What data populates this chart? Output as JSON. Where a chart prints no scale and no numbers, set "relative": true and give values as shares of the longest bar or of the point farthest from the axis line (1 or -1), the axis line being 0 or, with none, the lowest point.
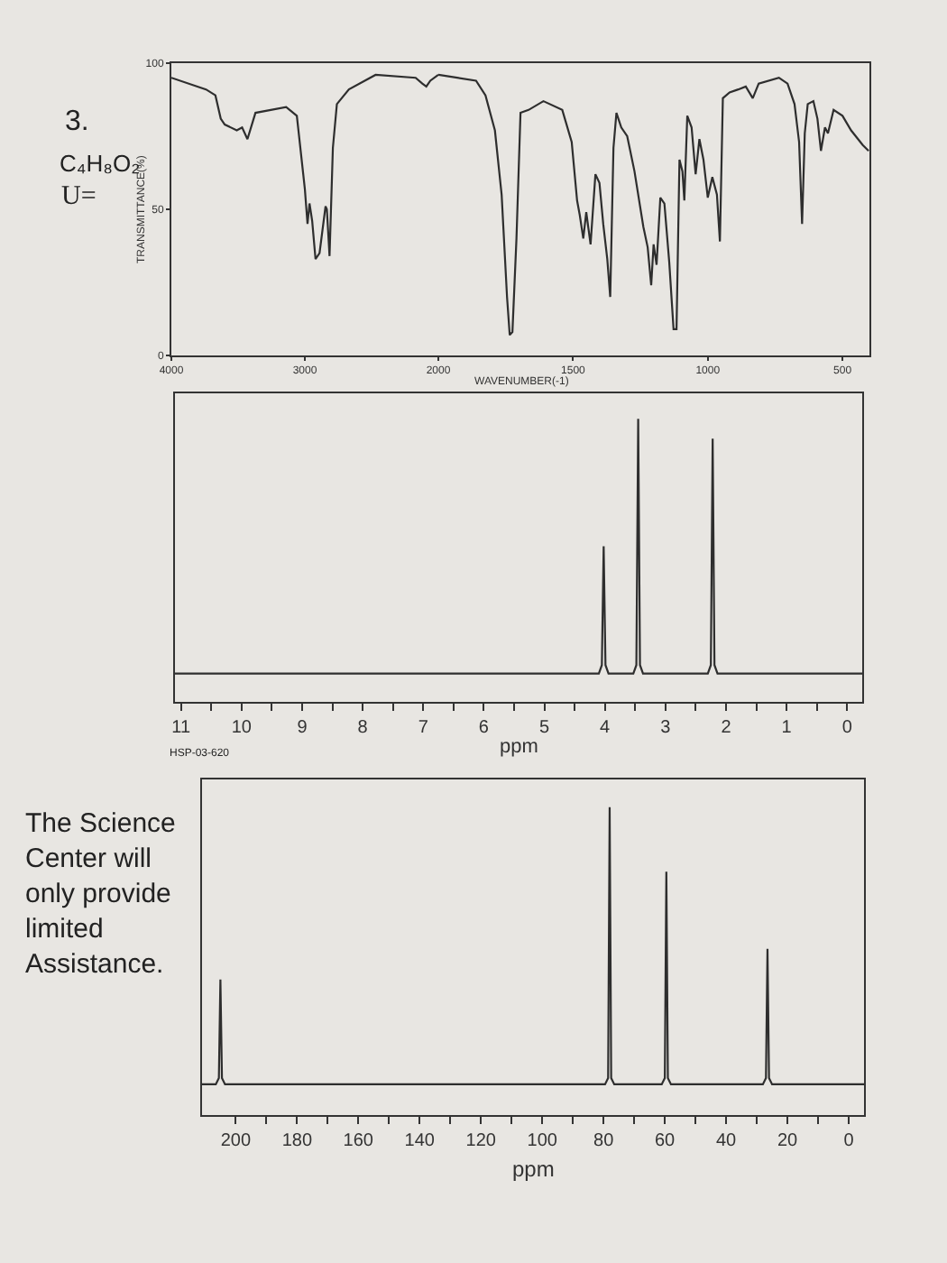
{
  "chart_data": [
    {
      "type": "line",
      "ylabel": "TRANSMITTANCE(%)",
      "annotations": [
        "3.",
        "C₄H₈O₂",
        "U="
      ],
      "color": "#2e2e2e",
      "xlim": [
        4000,
        2000
      ],
      "xticks": [
        4000,
        3000,
        2000
      ],
      "ylim": [
        0,
        100
      ],
      "yticks": [
        0,
        50,
        100
      ],
      "x": [
        4000,
        3740,
        3670,
        3630,
        3600,
        3510,
        3470,
        3430,
        3370,
        3140,
        3060,
        3000,
        2980,
        2965,
        2945,
        2920,
        2890,
        2845,
        2835,
        2815,
        2790,
        2760,
        2670,
        2470,
        2170,
        2120,
        2090,
        2060,
        2000
      ],
      "values": [
        95,
        91,
        89,
        81,
        79,
        77,
        78,
        74,
        83,
        85,
        82,
        57,
        45,
        52,
        46,
        33,
        35,
        51,
        50,
        34,
        71,
        86,
        91,
        96,
        95,
        93,
        92,
        94,
        96
      ]
    },
    {
      "type": "line",
      "xlabel": "WAVENUMBER(-1)",
      "color": "#2e2e2e",
      "xlim": [
        2000,
        400
      ],
      "xticks": [
        1500,
        1000,
        500
      ],
      "ylim": [
        0,
        100
      ],
      "tick_labels": "x",
      "x": [
        2000,
        1930,
        1860,
        1825,
        1790,
        1765,
        1745,
        1735,
        1725,
        1710,
        1695,
        1665,
        1610,
        1540,
        1505,
        1485,
        1475,
        1462,
        1451,
        1435,
        1417,
        1402,
        1388,
        1373,
        1362,
        1350,
        1339,
        1321,
        1299,
        1272,
        1239,
        1223,
        1210,
        1201,
        1190,
        1176,
        1161,
        1143,
        1127,
        1116,
        1105,
        1094,
        1087,
        1076,
        1060,
        1045,
        1031,
        1016,
        1000,
        983,
        966,
        955,
        944,
        919,
        887,
        859,
        833,
        811,
        736,
        704,
        678,
        661,
        650,
        640,
        629,
        608,
        593,
        580,
        565,
        554,
        533,
        500,
        468,
        425,
        403
      ],
      "values": [
        96,
        95,
        94,
        89,
        77,
        55,
        20,
        7,
        8,
        40,
        83,
        84,
        87,
        84,
        73,
        53,
        48,
        40,
        49,
        38,
        62,
        59,
        45,
        33,
        20,
        71,
        83,
        78,
        75,
        63,
        44,
        37,
        24,
        38,
        31,
        54,
        52,
        32,
        9,
        9,
        67,
        63,
        53,
        82,
        78,
        62,
        74,
        67,
        54,
        61,
        55,
        39,
        88,
        90,
        91,
        92,
        88,
        93,
        95,
        93,
        86,
        73,
        45,
        76,
        86,
        87,
        81,
        70,
        78,
        76,
        84,
        82,
        77,
        72,
        70
      ]
    },
    {
      "type": "line",
      "xlabel": "ppm",
      "annotations": [
        "HSP-03-620"
      ],
      "relative": true,
      "color": "#2e2e2e",
      "xlim": [
        11.1,
        -0.25
      ],
      "xticks": [
        11,
        {
          "value": 10.5,
          "label": null
        },
        10,
        {
          "value": 9.5,
          "label": null
        },
        9,
        {
          "value": 8.5,
          "label": null
        },
        8,
        {
          "value": 7.5,
          "label": null
        },
        7,
        {
          "value": 6.5,
          "label": null
        },
        6,
        {
          "value": 5.5,
          "label": null
        },
        5,
        {
          "value": 4.5,
          "label": null
        },
        4,
        {
          "value": 3.5,
          "label": null
        },
        3,
        {
          "value": 2.5,
          "label": null
        },
        2,
        {
          "value": 1.5,
          "label": null
        },
        1,
        {
          "value": 0.5,
          "label": null
        },
        0
      ],
      "x": [
        11.1,
        4.1,
        4.05,
        4.02,
        3.99,
        3.94,
        3.53,
        3.48,
        3.45,
        3.42,
        3.37,
        2.3,
        2.25,
        2.22,
        2.19,
        2.14,
        -0.25
      ],
      "values": [
        0.1,
        0.1,
        0.13,
        0.55,
        0.13,
        0.1,
        0.1,
        0.13,
        1,
        0.13,
        0.1,
        0.1,
        0.13,
        0.93,
        0.13,
        0.1,
        0.1
      ]
    },
    {
      "type": "line",
      "xlabel": "ppm",
      "annotations": [
        "The Science\nCenter will\nonly provide\nlimited\nAssistance."
      ],
      "relative": true,
      "color": "#2e2e2e",
      "xlim": [
        211,
        -5
      ],
      "xticks": [
        200,
        {
          "value": 190,
          "label": null
        },
        180,
        {
          "value": 170,
          "label": null
        },
        160,
        {
          "value": 150,
          "label": null
        },
        140,
        {
          "value": 130,
          "label": null
        },
        120,
        {
          "value": 110,
          "label": null
        },
        100,
        {
          "value": 90,
          "label": null
        },
        80,
        {
          "value": 70,
          "label": null
        },
        60,
        {
          "value": 50,
          "label": null
        },
        40,
        {
          "value": 30,
          "label": null
        },
        20,
        {
          "value": 10,
          "label": null
        },
        0
      ],
      "x": [
        211,
        206.5,
        205.5,
        205,
        204.5,
        203.5,
        79.5,
        78.5,
        78,
        77.5,
        76.5,
        61,
        60,
        59.5,
        59,
        58,
        28,
        27,
        26.5,
        26,
        25,
        -5
      ],
      "values": [
        0.1,
        0.1,
        0.12,
        0.44,
        0.12,
        0.1,
        0.1,
        0.12,
        1,
        0.12,
        0.1,
        0.1,
        0.12,
        0.79,
        0.12,
        0.1,
        0.1,
        0.12,
        0.54,
        0.12,
        0.1,
        0.1
      ]
    }
  ]
}
